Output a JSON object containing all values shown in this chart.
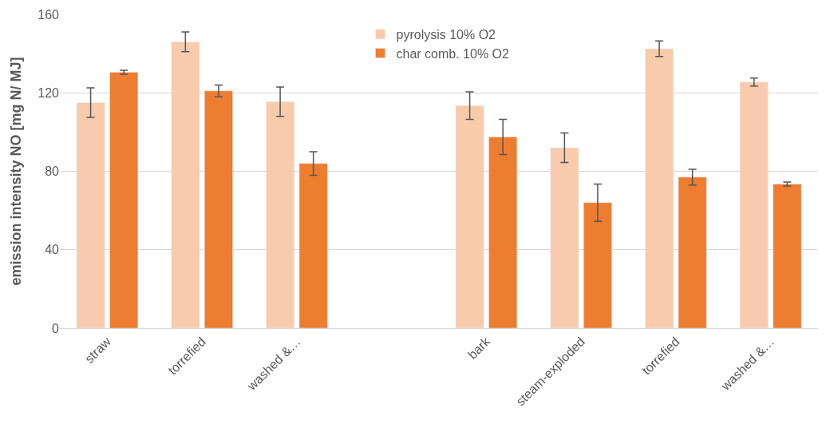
{
  "chart_data": {
    "type": "bar",
    "ylabel": "emission intensity NO [mg N/ MJ]",
    "categories": [
      "straw",
      "torrefied",
      "washed &…",
      null,
      "bark",
      "steam-exploded",
      "torrefied",
      "washed &…"
    ],
    "series": [
      {
        "name": "pyrolysis 10% O2",
        "color": "#f8cbad",
        "values": [
          115,
          146,
          115.5,
          null,
          113.5,
          92,
          142.5,
          125.5
        ],
        "errors": [
          7.5,
          5,
          7.5,
          null,
          7,
          7.5,
          4,
          2
        ]
      },
      {
        "name": "char comb. 10% O2",
        "color": "#ed7d31",
        "values": [
          130.5,
          121,
          84,
          null,
          97.5,
          64,
          77,
          73.5
        ],
        "errors": [
          1,
          3,
          6,
          null,
          9,
          9.5,
          4,
          1
        ]
      }
    ],
    "ylim": [
      0,
      160
    ],
    "yticks": [
      0,
      40,
      80,
      120,
      160
    ],
    "grid": "y",
    "legend": "top"
  }
}
